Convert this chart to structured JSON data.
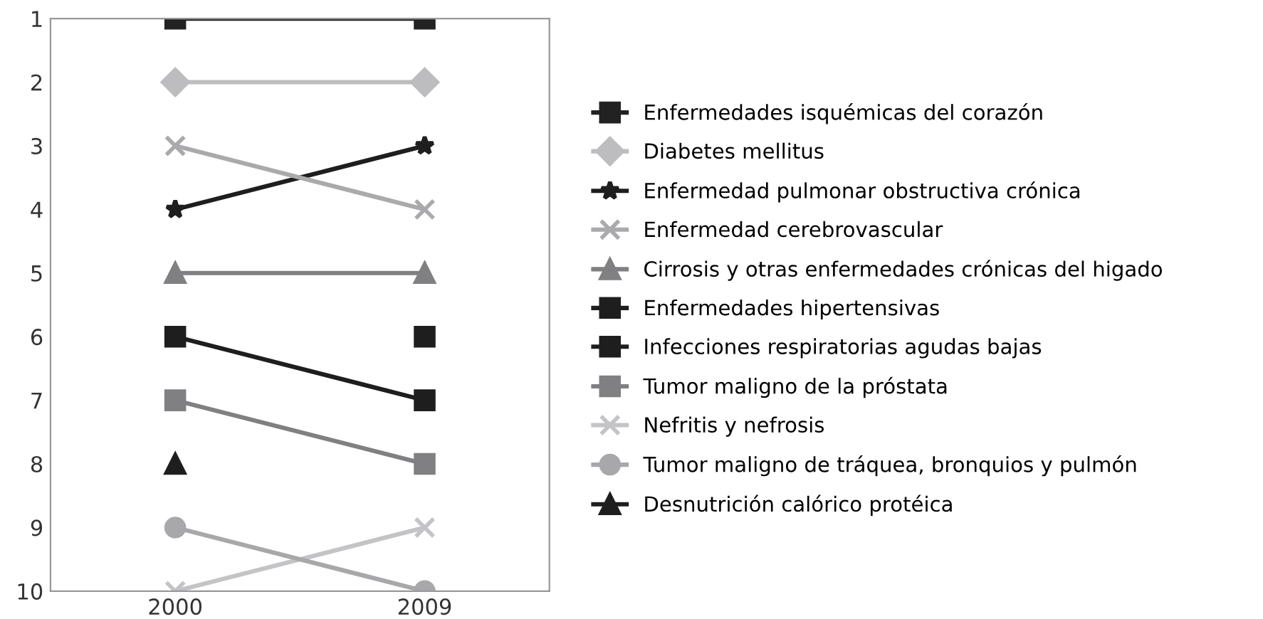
{
  "chart_data": {
    "type": "line",
    "categories": [
      "2000",
      "2009"
    ],
    "ylim": [
      10,
      1
    ],
    "yticks": [
      1,
      2,
      3,
      4,
      5,
      6,
      7,
      8,
      9,
      10
    ],
    "grid": false,
    "legend": "right",
    "line_style": "solid",
    "series": [
      {
        "name": "Enfermedades isquémicas del corazón",
        "color": "#222222",
        "marker": "square",
        "values": [
          1,
          1
        ]
      },
      {
        "name": "Diabetes mellitus",
        "color": "#bdbdbf",
        "marker": "diamond",
        "values": [
          2,
          2
        ]
      },
      {
        "name": "Enfermedad pulmonar obstructiva crónica",
        "color": "#1e1e1e",
        "marker": "star",
        "values": [
          4,
          3
        ]
      },
      {
        "name": "Enfermedad cerebrovascular",
        "color": "#aaaaac",
        "marker": "cross",
        "values": [
          3,
          4
        ]
      },
      {
        "name": "Cirrosis y otras enfermedades crónicas del higado",
        "color": "#808082",
        "marker": "triangle",
        "values": [
          5,
          5
        ]
      },
      {
        "name": "Enfermedades hipertensivas",
        "color": "#1e1e1e",
        "marker": "square",
        "values": [
          null,
          6
        ]
      },
      {
        "name": "Infecciones respiratorias agudas bajas",
        "color": "#1e1e1e",
        "marker": "square",
        "values": [
          6,
          7
        ]
      },
      {
        "name": "Tumor maligno de la próstata",
        "color": "#808082",
        "marker": "square",
        "values": [
          7,
          8
        ]
      },
      {
        "name": "Nefritis y nefrosis",
        "color": "#c4c4c6",
        "marker": "cross",
        "values": [
          10,
          9
        ]
      },
      {
        "name": "Tumor maligno de tráquea, bronquios y pulmón",
        "color": "#a8a8aa",
        "marker": "circle",
        "values": [
          9,
          10
        ]
      },
      {
        "name": "Desnutrición calórico protéica",
        "color": "#1e1e1e",
        "marker": "triangle",
        "values": [
          8,
          null
        ]
      }
    ]
  }
}
